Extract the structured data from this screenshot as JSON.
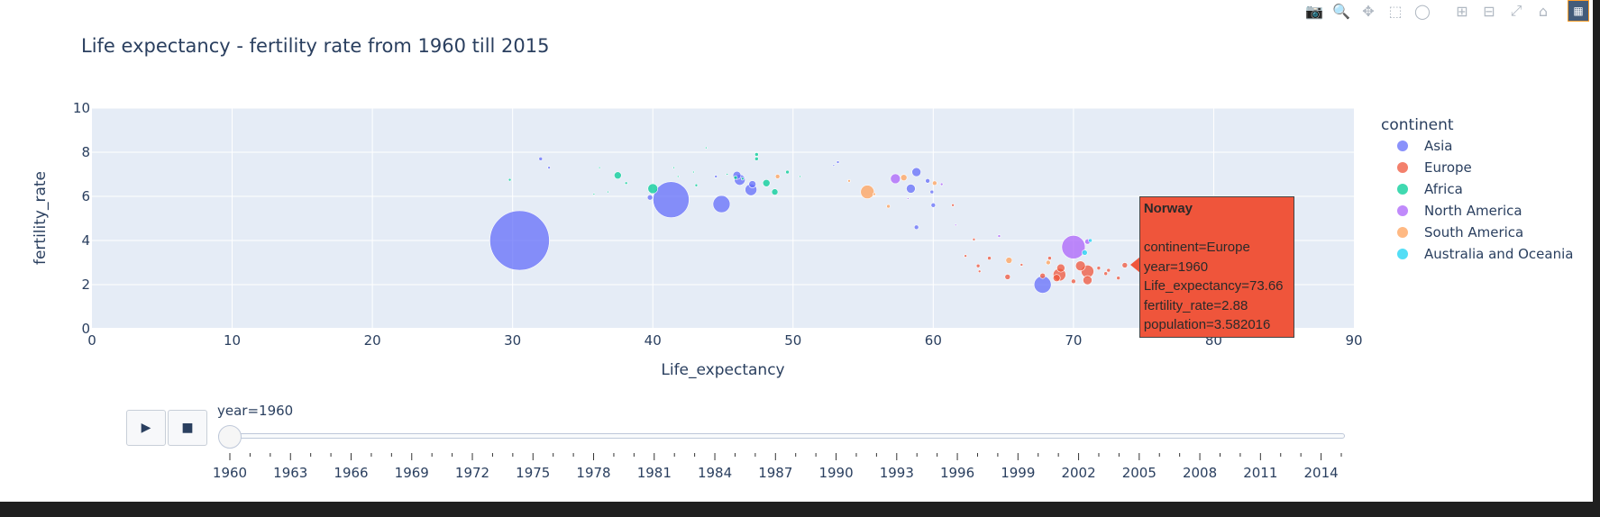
{
  "modebar": {
    "icons": [
      "camera-icon",
      "zoom-icon",
      "pan-icon",
      "box-select-icon",
      "lasso-icon",
      "zoom-in-icon",
      "zoom-out-icon",
      "autoscale-icon",
      "reset-axes-icon",
      "plotly-logo-icon"
    ]
  },
  "chart_data": {
    "type": "scatter",
    "title": "Life expectancy - fertility rate from 1960 till 2015",
    "xlabel": "Life_expectancy",
    "ylabel": "fertility_rate",
    "xlim": [
      0,
      90
    ],
    "ylim": [
      0,
      10
    ],
    "xticks": [
      0,
      10,
      20,
      30,
      40,
      50,
      60,
      70,
      80,
      90
    ],
    "yticks": [
      0,
      2,
      4,
      6,
      8,
      10
    ],
    "grid": true,
    "legend": {
      "title": "continent",
      "position": "right",
      "entries": [
        {
          "name": "Asia",
          "color": "#636efa"
        },
        {
          "name": "Europe",
          "color": "#ef553b"
        },
        {
          "name": "Africa",
          "color": "#00cc96"
        },
        {
          "name": "North America",
          "color": "#ab63fa"
        },
        {
          "name": "South America",
          "color": "#ffa15a"
        },
        {
          "name": "Australia and Oceania",
          "color": "#19d3f3"
        }
      ]
    },
    "series": [
      {
        "name": "Asia",
        "color": "#636efa",
        "points": [
          {
            "x": 30.5,
            "y": 4.0,
            "size": 66
          },
          {
            "x": 41.3,
            "y": 5.85,
            "size": 40
          },
          {
            "x": 44.9,
            "y": 5.65,
            "size": 19
          },
          {
            "x": 47.0,
            "y": 6.3,
            "size": 13
          },
          {
            "x": 46.2,
            "y": 6.75,
            "size": 12
          },
          {
            "x": 46.0,
            "y": 6.95,
            "size": 9
          },
          {
            "x": 47.1,
            "y": 6.55,
            "size": 8
          },
          {
            "x": 58.8,
            "y": 7.1,
            "size": 10
          },
          {
            "x": 58.4,
            "y": 6.35,
            "size": 10
          },
          {
            "x": 67.8,
            "y": 2.0,
            "size": 19
          },
          {
            "x": 58.8,
            "y": 4.6,
            "size": 5
          },
          {
            "x": 32.0,
            "y": 7.7,
            "size": 4
          },
          {
            "x": 32.6,
            "y": 7.3,
            "size": 3
          },
          {
            "x": 39.8,
            "y": 5.95,
            "size": 6
          },
          {
            "x": 59.6,
            "y": 6.7,
            "size": 5
          },
          {
            "x": 60.0,
            "y": 5.6,
            "size": 5
          },
          {
            "x": 59.9,
            "y": 6.2,
            "size": 4
          },
          {
            "x": 53.2,
            "y": 7.55,
            "size": 3
          },
          {
            "x": 52.9,
            "y": 7.4,
            "size": 2
          },
          {
            "x": 44.5,
            "y": 6.9,
            "size": 3
          }
        ]
      },
      {
        "name": "Europe",
        "color": "#ef553b",
        "points": [
          {
            "x": 69.0,
            "y": 2.45,
            "size": 14
          },
          {
            "x": 71.0,
            "y": 2.6,
            "size": 14
          },
          {
            "x": 71.0,
            "y": 2.2,
            "size": 10
          },
          {
            "x": 70.5,
            "y": 2.85,
            "size": 11
          },
          {
            "x": 69.1,
            "y": 2.75,
            "size": 9
          },
          {
            "x": 68.8,
            "y": 2.3,
            "size": 8
          },
          {
            "x": 73.2,
            "y": 2.3,
            "size": 4
          },
          {
            "x": 73.66,
            "y": 2.88,
            "size": 6
          },
          {
            "x": 65.3,
            "y": 2.35,
            "size": 6
          },
          {
            "x": 63.2,
            "y": 2.85,
            "size": 4
          },
          {
            "x": 62.3,
            "y": 3.3,
            "size": 3
          },
          {
            "x": 64.0,
            "y": 3.2,
            "size": 4
          },
          {
            "x": 67.8,
            "y": 2.4,
            "size": 6
          },
          {
            "x": 66.3,
            "y": 2.9,
            "size": 3
          },
          {
            "x": 70.0,
            "y": 2.15,
            "size": 5
          },
          {
            "x": 72.3,
            "y": 2.5,
            "size": 4
          },
          {
            "x": 61.4,
            "y": 5.6,
            "size": 3
          },
          {
            "x": 62.9,
            "y": 4.05,
            "size": 3
          },
          {
            "x": 68.3,
            "y": 3.2,
            "size": 4
          },
          {
            "x": 71.8,
            "y": 2.75,
            "size": 4
          },
          {
            "x": 72.5,
            "y": 2.65,
            "size": 4
          },
          {
            "x": 63.3,
            "y": 2.6,
            "size": 3
          }
        ]
      },
      {
        "name": "Africa",
        "color": "#00cc96",
        "points": [
          {
            "x": 40.0,
            "y": 6.35,
            "size": 11
          },
          {
            "x": 37.5,
            "y": 6.95,
            "size": 8
          },
          {
            "x": 48.1,
            "y": 6.6,
            "size": 8
          },
          {
            "x": 48.7,
            "y": 6.2,
            "size": 7
          },
          {
            "x": 47.4,
            "y": 7.9,
            "size": 4
          },
          {
            "x": 47.4,
            "y": 7.7,
            "size": 4
          },
          {
            "x": 49.6,
            "y": 7.1,
            "size": 4
          },
          {
            "x": 38.1,
            "y": 6.6,
            "size": 3
          },
          {
            "x": 36.2,
            "y": 7.3,
            "size": 2
          },
          {
            "x": 29.8,
            "y": 6.75,
            "size": 3
          },
          {
            "x": 42.9,
            "y": 7.1,
            "size": 2
          },
          {
            "x": 45.9,
            "y": 6.85,
            "size": 4
          },
          {
            "x": 43.1,
            "y": 6.5,
            "size": 3
          },
          {
            "x": 43.8,
            "y": 8.2,
            "size": 2
          },
          {
            "x": 41.8,
            "y": 6.9,
            "size": 2
          },
          {
            "x": 36.8,
            "y": 6.2,
            "size": 2
          },
          {
            "x": 35.8,
            "y": 6.1,
            "size": 2
          },
          {
            "x": 50.5,
            "y": 6.9,
            "size": 2
          },
          {
            "x": 41.5,
            "y": 7.3,
            "size": 2
          },
          {
            "x": 45.3,
            "y": 7.0,
            "size": 2
          },
          {
            "x": 46.4,
            "y": 6.8,
            "size": 3
          }
        ]
      },
      {
        "name": "North America",
        "color": "#ab63fa",
        "points": [
          {
            "x": 70.0,
            "y": 3.7,
            "size": 26
          },
          {
            "x": 57.3,
            "y": 6.8,
            "size": 11
          },
          {
            "x": 71.0,
            "y": 3.95,
            "size": 6
          },
          {
            "x": 60.6,
            "y": 6.55,
            "size": 3
          },
          {
            "x": 64.7,
            "y": 4.2,
            "size": 3
          },
          {
            "x": 61.6,
            "y": 4.7,
            "size": 2
          },
          {
            "x": 58.2,
            "y": 5.9,
            "size": 2
          }
        ]
      },
      {
        "name": "South America",
        "color": "#ffa15a",
        "points": [
          {
            "x": 55.3,
            "y": 6.2,
            "size": 15
          },
          {
            "x": 57.9,
            "y": 6.85,
            "size": 7
          },
          {
            "x": 65.4,
            "y": 3.1,
            "size": 7
          },
          {
            "x": 56.8,
            "y": 5.55,
            "size": 4
          },
          {
            "x": 60.1,
            "y": 6.6,
            "size": 5
          },
          {
            "x": 48.9,
            "y": 6.9,
            "size": 5
          },
          {
            "x": 68.2,
            "y": 3.0,
            "size": 5
          },
          {
            "x": 54.0,
            "y": 6.7,
            "size": 3
          },
          {
            "x": 55.8,
            "y": 6.1,
            "size": 3
          }
        ]
      },
      {
        "name": "Australia and Oceania",
        "color": "#19d3f3",
        "points": [
          {
            "x": 70.8,
            "y": 3.45,
            "size": 6
          },
          {
            "x": 71.2,
            "y": 4.0,
            "size": 4
          }
        ]
      }
    ]
  },
  "hover": {
    "title": "Norway",
    "lines": [
      "continent=Europe",
      "year=1960",
      "Life_expectancy=73.66",
      "fertility_rate=2.88",
      "population=3.582016"
    ]
  },
  "slider": {
    "current_label": "year=1960",
    "ticks": [
      "1960",
      "1963",
      "1966",
      "1969",
      "1972",
      "1975",
      "1978",
      "1981",
      "1984",
      "1987",
      "1990",
      "1993",
      "1996",
      "1999",
      "2002",
      "2005",
      "2008",
      "2011",
      "2014"
    ],
    "min_year": 1960,
    "max_year": 2015,
    "value": 1960
  },
  "controls": {
    "play_symbol": "▶",
    "stop_symbol": "■"
  }
}
